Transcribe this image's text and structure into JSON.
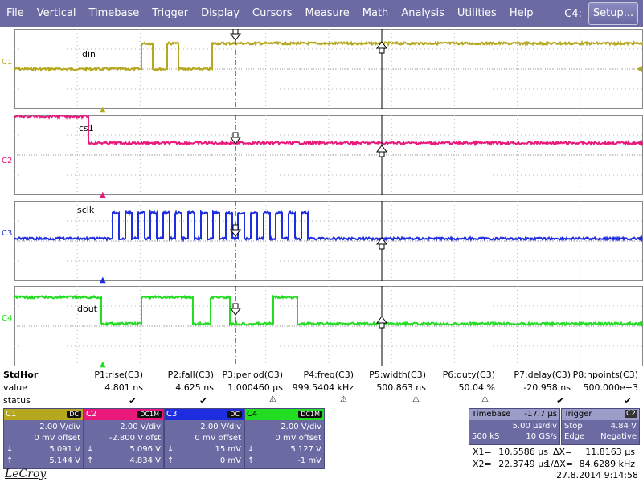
{
  "menu": {
    "items": [
      "File",
      "Vertical",
      "Timebase",
      "Trigger",
      "Display",
      "Cursors",
      "Measure",
      "Math",
      "Analysis",
      "Utilities",
      "Help"
    ],
    "setup_prefix": "C4:",
    "setup_button": "Setup..."
  },
  "channels": [
    {
      "id": "C1",
      "trace": "din",
      "color": "#b5a81e"
    },
    {
      "id": "C2",
      "trace": "cs1",
      "color": "#e8197b"
    },
    {
      "id": "C3",
      "trace": "sclk",
      "color": "#1f2de0"
    },
    {
      "id": "C4",
      "trace": "dout",
      "color": "#22dd22"
    }
  ],
  "measurements": {
    "header": "StdHor",
    "row_value_label": "value",
    "row_status_label": "status",
    "params": [
      {
        "name": "P1:rise(C3)",
        "value": "4.801 ns",
        "status": "ok"
      },
      {
        "name": "P2:fall(C3)",
        "value": "4.625 ns",
        "status": "ok"
      },
      {
        "name": "P3:period(C3)",
        "value": "1.000460 µs",
        "status": "warn"
      },
      {
        "name": "P4:freq(C3)",
        "value": "999.5404 kHz",
        "status": "warn"
      },
      {
        "name": "P5:width(C3)",
        "value": "500.863 ns",
        "status": "warn"
      },
      {
        "name": "P6:duty(C3)",
        "value": "50.04 %",
        "status": "warn"
      },
      {
        "name": "P7:delay(C3)",
        "value": "-20.958 ns",
        "status": "ok"
      },
      {
        "name": "P8:npoints(C3)",
        "value": "500.000e+3",
        "status": "ok"
      }
    ]
  },
  "channel_boxes": [
    {
      "name": "C1",
      "coupling": "DC",
      "coupling_color": "#b5a81e",
      "vdiv": "2.00 V/div",
      "offset": "0 mV offset",
      "v1": "5.091 V",
      "v2": "5.144 V"
    },
    {
      "name": "C2",
      "coupling": "DC1M",
      "coupling_color": "#e8197b",
      "vdiv": "2.00 V/div",
      "offset": "-2.800 V ofst",
      "v1": "5.096 V",
      "v2": "4.834 V"
    },
    {
      "name": "C3",
      "coupling": "DC",
      "coupling_color": "#1f2de0",
      "vdiv": "2.00 V/div",
      "offset": "0 mV offset",
      "v1": "15 mV",
      "v2": "0 mV"
    },
    {
      "name": "C4",
      "coupling": "DC1M",
      "coupling_color": "#22dd22",
      "vdiv": "2.00 V/div",
      "offset": "0 mV offset",
      "v1": "5.127 V",
      "v2": "-1 mV"
    }
  ],
  "timebase": {
    "title": "Timebase",
    "delay": "-17.7 µs",
    "div": "5.00 µs/div",
    "samples": "500 kS",
    "rate": "10 GS/s"
  },
  "trigger": {
    "title": "Trigger",
    "channel": "C2",
    "mode": "Stop",
    "level": "4.84 V",
    "type": "Edge",
    "slope": "Negative"
  },
  "cursors": {
    "x1_label": "X1=",
    "x1": "10.5586 µs",
    "dx_label": "ΔX=",
    "dx": "11.8163 µs",
    "x2_label": "X2=",
    "x2": "22.3749 µs",
    "inv_label": "1/ΔX=",
    "inv": "84.6289 kHz"
  },
  "brand": "LeCroy",
  "datetime": "27.8.2014 9:14:58",
  "colors": {
    "menu_bg": "#6b6aa3",
    "panel_bg": "#6b6aa3"
  }
}
